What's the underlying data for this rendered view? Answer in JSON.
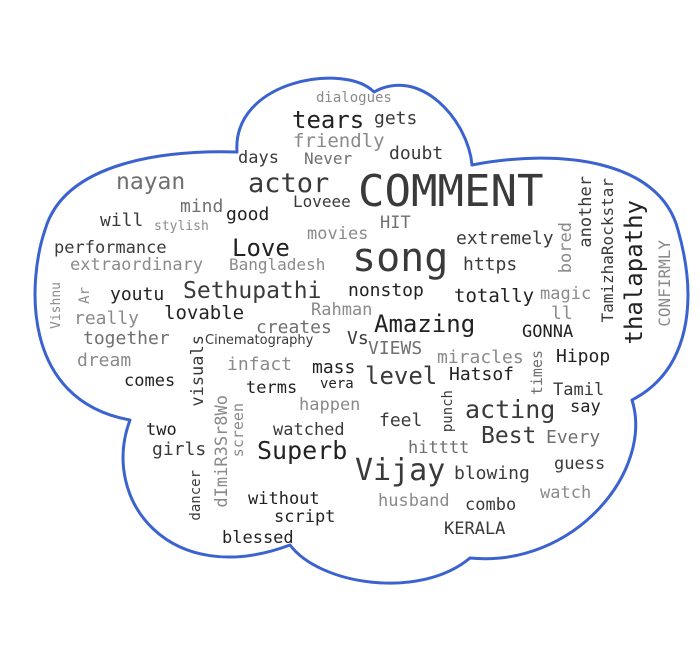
{
  "outline_color": "#3b63cf",
  "words": [
    {
      "text": "COMMENT",
      "color": "#3a3a3a"
    },
    {
      "text": "song",
      "color": "#3a3a3a"
    },
    {
      "text": "Vijay",
      "color": "#3a3a3a"
    },
    {
      "text": "actor",
      "color": "#3a3a3a"
    },
    {
      "text": "tears",
      "color": "#222222"
    },
    {
      "text": "gets",
      "color": "#3a3a3a"
    },
    {
      "text": "dialogues",
      "color": "#8a8a8a"
    },
    {
      "text": "friendly",
      "color": "#8a8a8a"
    },
    {
      "text": "days",
      "color": "#3a3a3a"
    },
    {
      "text": "Never",
      "color": "#6f6f6f"
    },
    {
      "text": "doubt",
      "color": "#3a3a3a"
    },
    {
      "text": "nayan",
      "color": "#6f6f6f"
    },
    {
      "text": "mind",
      "color": "#6f6f6f"
    },
    {
      "text": "good",
      "color": "#222222"
    },
    {
      "text": "Loveee",
      "color": "#3a3a3a"
    },
    {
      "text": "HIT",
      "color": "#6f6f6f"
    },
    {
      "text": "will",
      "color": "#3a3a3a"
    },
    {
      "text": "stylish",
      "color": "#8a8a8a"
    },
    {
      "text": "movies",
      "color": "#8a8a8a"
    },
    {
      "text": "extremely",
      "color": "#3a3a3a"
    },
    {
      "text": "performance",
      "color": "#3a3a3a"
    },
    {
      "text": "Love",
      "color": "#222222"
    },
    {
      "text": "extraordinary",
      "color": "#8a8a8a"
    },
    {
      "text": "Bangladesh",
      "color": "#8a8a8a"
    },
    {
      "text": "https",
      "color": "#3a3a3a"
    },
    {
      "text": "youtu",
      "color": "#222222"
    },
    {
      "text": "Sethupathi",
      "color": "#3a3a3a"
    },
    {
      "text": "nonstop",
      "color": "#222222"
    },
    {
      "text": "totally",
      "color": "#222222"
    },
    {
      "text": "magic",
      "color": "#8a8a8a"
    },
    {
      "text": "really",
      "color": "#8a8a8a"
    },
    {
      "text": "lovable",
      "color": "#222222"
    },
    {
      "text": "Rahman",
      "color": "#8a8a8a"
    },
    {
      "text": "ll",
      "color": "#8a8a8a"
    },
    {
      "text": "Amazing",
      "color": "#222222"
    },
    {
      "text": "creates",
      "color": "#6f6f6f"
    },
    {
      "text": "GONNA",
      "color": "#222222"
    },
    {
      "text": "together",
      "color": "#6f6f6f"
    },
    {
      "text": "Cinematography",
      "color": "#3a3a3a"
    },
    {
      "text": "Vs",
      "color": "#3a3a3a"
    },
    {
      "text": "VIEWS",
      "color": "#6f6f6f"
    },
    {
      "text": "dream",
      "color": "#8a8a8a"
    },
    {
      "text": "infact",
      "color": "#8a8a8a"
    },
    {
      "text": "mass",
      "color": "#222222"
    },
    {
      "text": "level",
      "color": "#3a3a3a"
    },
    {
      "text": "miracles",
      "color": "#8a8a8a"
    },
    {
      "text": "Hipop",
      "color": "#222222"
    },
    {
      "text": "comes",
      "color": "#222222"
    },
    {
      "text": "vera",
      "color": "#222222"
    },
    {
      "text": "Hatsof",
      "color": "#222222"
    },
    {
      "text": "terms",
      "color": "#222222"
    },
    {
      "text": "Tamil",
      "color": "#3a3a3a"
    },
    {
      "text": "happen",
      "color": "#8a8a8a"
    },
    {
      "text": "acting",
      "color": "#3a3a3a"
    },
    {
      "text": "say",
      "color": "#222222"
    },
    {
      "text": "two",
      "color": "#222222"
    },
    {
      "text": "feel",
      "color": "#3a3a3a"
    },
    {
      "text": "watched",
      "color": "#3a3a3a"
    },
    {
      "text": "Best",
      "color": "#3a3a3a"
    },
    {
      "text": "Every",
      "color": "#6f6f6f"
    },
    {
      "text": "girls",
      "color": "#3a3a3a"
    },
    {
      "text": "hitttt",
      "color": "#6f6f6f"
    },
    {
      "text": "Superb",
      "color": "#222222"
    },
    {
      "text": "guess",
      "color": "#3a3a3a"
    },
    {
      "text": "blowing",
      "color": "#3a3a3a"
    },
    {
      "text": "watch",
      "color": "#8a8a8a"
    },
    {
      "text": "husband",
      "color": "#8a8a8a"
    },
    {
      "text": "combo",
      "color": "#3a3a3a"
    },
    {
      "text": "without",
      "color": "#222222"
    },
    {
      "text": "script",
      "color": "#222222"
    },
    {
      "text": "KERALA",
      "color": "#3a3a3a"
    },
    {
      "text": "blessed",
      "color": "#222222"
    },
    {
      "text": "thalapathy",
      "color": "#222222"
    },
    {
      "text": "CONFIRMLY",
      "color": "#8a8a8a"
    },
    {
      "text": "TamizhaRockstar",
      "color": "#3a3a3a"
    },
    {
      "text": "another",
      "color": "#3a3a3a"
    },
    {
      "text": "bored",
      "color": "#8a8a8a"
    },
    {
      "text": "Vishnu",
      "color": "#8a8a8a"
    },
    {
      "text": "Ar",
      "color": "#8a8a8a"
    },
    {
      "text": "visuals",
      "color": "#3a3a3a"
    },
    {
      "text": "dImiR3Sr8Wo",
      "color": "#8a8a8a"
    },
    {
      "text": "screen",
      "color": "#8a8a8a"
    },
    {
      "text": "dancer",
      "color": "#3a3a3a"
    },
    {
      "text": "punch",
      "color": "#3a3a3a"
    },
    {
      "text": "times",
      "color": "#6f6f6f"
    }
  ]
}
